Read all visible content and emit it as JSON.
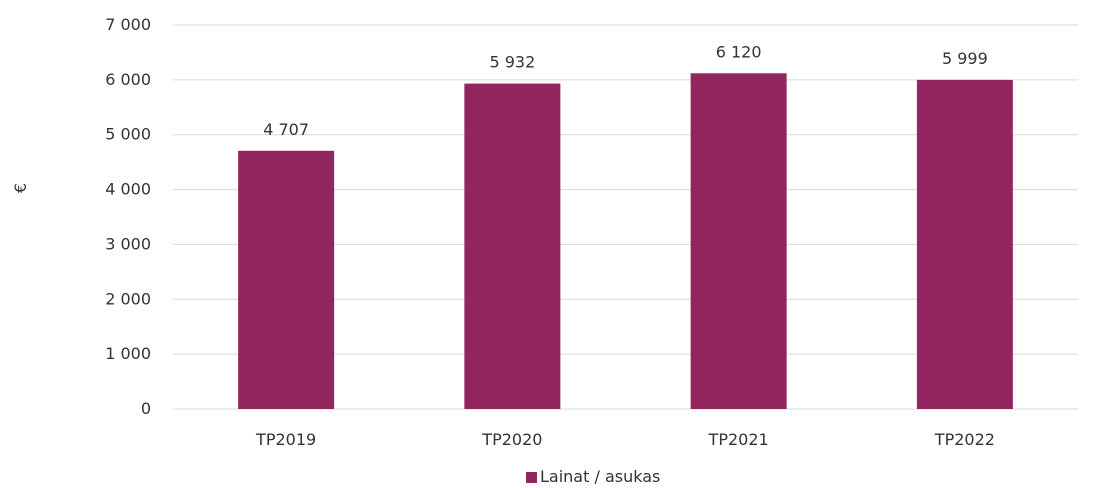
{
  "chart_data": {
    "type": "bar",
    "categories": [
      "TP2019",
      "TP2020",
      "TP2021",
      "TP2022"
    ],
    "series": [
      {
        "name": "Lainat / asukas",
        "values": [
          4707,
          5932,
          6120,
          5999
        ]
      }
    ],
    "data_labels": [
      "4 707",
      "5 932",
      "6 120",
      "5 999"
    ],
    "ylabel": "€",
    "ylim": [
      0,
      7000
    ],
    "y_ticks": [
      0,
      1000,
      2000,
      3000,
      4000,
      5000,
      6000,
      7000
    ],
    "y_tick_labels": [
      "0",
      "1 000",
      "2 000",
      "3 000",
      "4 000",
      "5 000",
      "6 000",
      "7 000"
    ],
    "grid": true,
    "legend_position": "bottom",
    "bar_color": "#93255E",
    "grid_color": "#D9D9D9"
  }
}
